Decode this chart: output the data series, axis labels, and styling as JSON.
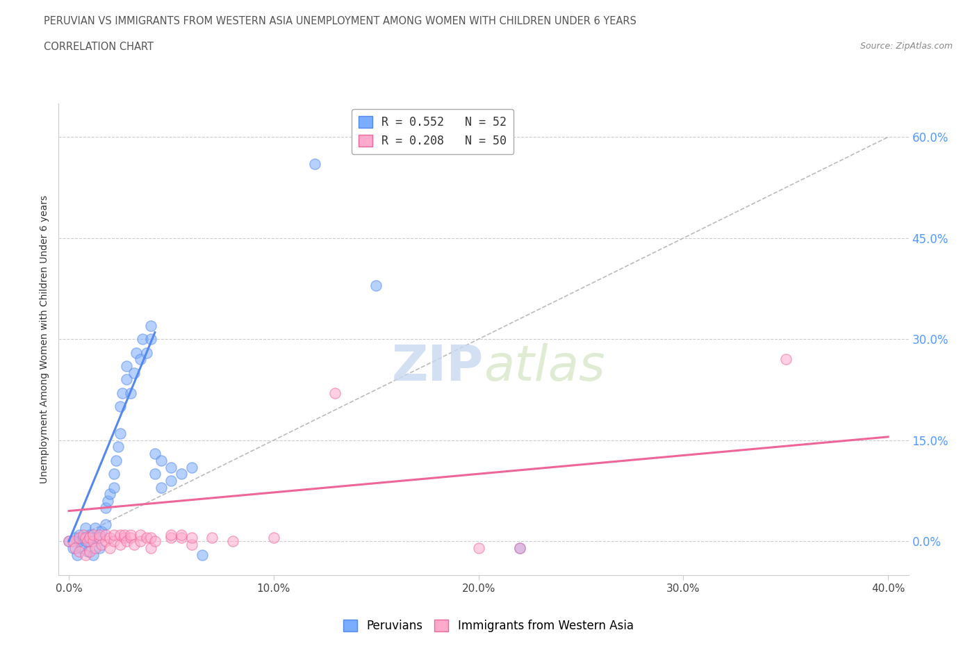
{
  "title_line1": "PERUVIAN VS IMMIGRANTS FROM WESTERN ASIA UNEMPLOYMENT AMONG WOMEN WITH CHILDREN UNDER 6 YEARS",
  "title_line2": "CORRELATION CHART",
  "source_text": "Source: ZipAtlas.com",
  "xlabel_ticks": [
    "0.0%",
    "10.0%",
    "20.0%",
    "30.0%",
    "40.0%"
  ],
  "ylabel_ticks": [
    "0.0%",
    "15.0%",
    "30.0%",
    "45.0%",
    "60.0%"
  ],
  "xlim": [
    -0.005,
    0.41
  ],
  "ylim": [
    -0.05,
    0.65
  ],
  "ylabel": "Unemployment Among Women with Children Under 6 years",
  "legend_entries": [
    {
      "label": "R = 0.552   N = 52",
      "color": "#7aacff"
    },
    {
      "label": "R = 0.208   N = 50",
      "color": "#ff99cc"
    }
  ],
  "legend_labels": [
    "Peruvians",
    "Immigrants from Western Asia"
  ],
  "blue_scatter": [
    [
      0.0,
      0.0
    ],
    [
      0.002,
      -0.01
    ],
    [
      0.003,
      0.005
    ],
    [
      0.004,
      -0.02
    ],
    [
      0.005,
      0.0
    ],
    [
      0.005,
      0.01
    ],
    [
      0.006,
      -0.01
    ],
    [
      0.007,
      0.005
    ],
    [
      0.008,
      0.0
    ],
    [
      0.008,
      0.02
    ],
    [
      0.009,
      -0.015
    ],
    [
      0.01,
      0.0
    ],
    [
      0.01,
      0.01
    ],
    [
      0.012,
      -0.02
    ],
    [
      0.012,
      0.005
    ],
    [
      0.013,
      0.02
    ],
    [
      0.015,
      -0.01
    ],
    [
      0.015,
      0.005
    ],
    [
      0.016,
      0.015
    ],
    [
      0.018,
      0.025
    ],
    [
      0.018,
      0.05
    ],
    [
      0.019,
      0.06
    ],
    [
      0.02,
      0.07
    ],
    [
      0.022,
      0.08
    ],
    [
      0.022,
      0.1
    ],
    [
      0.023,
      0.12
    ],
    [
      0.024,
      0.14
    ],
    [
      0.025,
      0.16
    ],
    [
      0.025,
      0.2
    ],
    [
      0.026,
      0.22
    ],
    [
      0.028,
      0.24
    ],
    [
      0.028,
      0.26
    ],
    [
      0.03,
      0.22
    ],
    [
      0.032,
      0.25
    ],
    [
      0.033,
      0.28
    ],
    [
      0.035,
      0.27
    ],
    [
      0.036,
      0.3
    ],
    [
      0.038,
      0.28
    ],
    [
      0.04,
      0.3
    ],
    [
      0.04,
      0.32
    ],
    [
      0.042,
      0.1
    ],
    [
      0.042,
      0.13
    ],
    [
      0.045,
      0.08
    ],
    [
      0.045,
      0.12
    ],
    [
      0.05,
      0.09
    ],
    [
      0.05,
      0.11
    ],
    [
      0.055,
      0.1
    ],
    [
      0.06,
      0.11
    ],
    [
      0.065,
      -0.02
    ],
    [
      0.12,
      0.56
    ],
    [
      0.15,
      0.38
    ],
    [
      0.22,
      -0.01
    ]
  ],
  "pink_scatter": [
    [
      0.0,
      0.0
    ],
    [
      0.002,
      0.0
    ],
    [
      0.003,
      -0.01
    ],
    [
      0.005,
      0.005
    ],
    [
      0.005,
      -0.015
    ],
    [
      0.007,
      0.01
    ],
    [
      0.008,
      -0.02
    ],
    [
      0.008,
      0.005
    ],
    [
      0.009,
      0.0
    ],
    [
      0.01,
      -0.015
    ],
    [
      0.01,
      0.005
    ],
    [
      0.012,
      0.0
    ],
    [
      0.012,
      0.01
    ],
    [
      0.013,
      -0.01
    ],
    [
      0.015,
      0.005
    ],
    [
      0.015,
      0.01
    ],
    [
      0.016,
      -0.005
    ],
    [
      0.018,
      0.0
    ],
    [
      0.018,
      0.01
    ],
    [
      0.02,
      -0.01
    ],
    [
      0.02,
      0.005
    ],
    [
      0.022,
      0.0
    ],
    [
      0.022,
      0.01
    ],
    [
      0.025,
      -0.005
    ],
    [
      0.025,
      0.01
    ],
    [
      0.027,
      0.005
    ],
    [
      0.027,
      0.01
    ],
    [
      0.028,
      0.0
    ],
    [
      0.03,
      0.005
    ],
    [
      0.03,
      0.01
    ],
    [
      0.032,
      -0.005
    ],
    [
      0.035,
      0.0
    ],
    [
      0.035,
      0.01
    ],
    [
      0.038,
      0.005
    ],
    [
      0.04,
      -0.01
    ],
    [
      0.04,
      0.005
    ],
    [
      0.042,
      0.0
    ],
    [
      0.05,
      0.005
    ],
    [
      0.05,
      0.01
    ],
    [
      0.055,
      0.005
    ],
    [
      0.055,
      0.01
    ],
    [
      0.06,
      -0.005
    ],
    [
      0.06,
      0.005
    ],
    [
      0.07,
      0.005
    ],
    [
      0.08,
      0.0
    ],
    [
      0.1,
      0.005
    ],
    [
      0.13,
      0.22
    ],
    [
      0.2,
      -0.01
    ],
    [
      0.22,
      -0.01
    ],
    [
      0.35,
      0.27
    ]
  ],
  "blue_line": [
    [
      0.0,
      0.0
    ],
    [
      0.042,
      0.31
    ]
  ],
  "pink_line": [
    [
      0.0,
      0.045
    ],
    [
      0.4,
      0.155
    ]
  ],
  "blue_dot_line": [
    [
      0.0,
      0.0
    ],
    [
      0.4,
      0.6
    ]
  ],
  "scatter_size": 120,
  "scatter_alpha": 0.55,
  "blue_color": "#7aacff",
  "pink_color": "#ffaacc",
  "blue_edge_color": "#5588ee",
  "pink_edge_color": "#ee6699",
  "dot_line_color": "#bbbbbb",
  "watermark_zip": "ZIP",
  "watermark_atlas": "atlas",
  "grid_color": "#cccccc",
  "right_tick_color": "#5599ff",
  "title_color": "#555555"
}
